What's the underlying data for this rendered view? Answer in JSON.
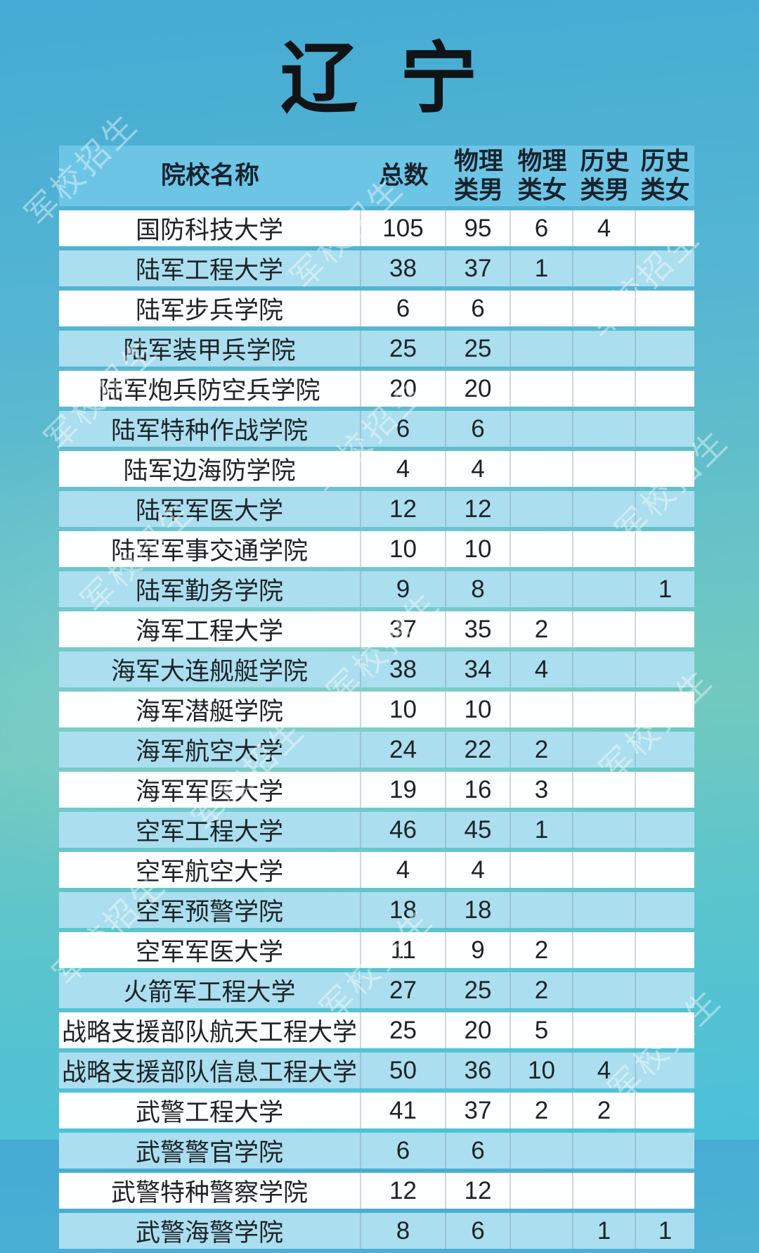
{
  "title": "辽 宁",
  "watermark": {
    "text": "军校招生"
  },
  "colors": {
    "background_top": "#45abd4",
    "background_middle": "#72c9c0",
    "background_bottom": "#4cc0da",
    "header_blue": "#6dc5e6",
    "row_light_blue": "#abdeee",
    "row_white": "#fdfeff",
    "text": "#1d2329"
  },
  "table": {
    "headers": [
      "院校名称",
      "总数",
      "物理\n类男",
      "物理\n类女",
      "历史\n类男",
      "历史\n类女"
    ],
    "rows": [
      {
        "name": "国防科技大学",
        "values": [
          "105",
          "95",
          "6",
          "4",
          ""
        ]
      },
      {
        "name": "陆军工程大学",
        "values": [
          "38",
          "37",
          "1",
          "",
          ""
        ]
      },
      {
        "name": "陆军步兵学院",
        "values": [
          "6",
          "6",
          "",
          "",
          ""
        ]
      },
      {
        "name": "陆军装甲兵学院",
        "values": [
          "25",
          "25",
          "",
          "",
          ""
        ]
      },
      {
        "name": "陆军炮兵防空兵学院",
        "values": [
          "20",
          "20",
          "",
          "",
          ""
        ]
      },
      {
        "name": "陆军特种作战学院",
        "values": [
          "6",
          "6",
          "",
          "",
          ""
        ]
      },
      {
        "name": "陆军边海防学院",
        "values": [
          "4",
          "4",
          "",
          "",
          ""
        ]
      },
      {
        "name": "陆军军医大学",
        "values": [
          "12",
          "12",
          "",
          "",
          ""
        ]
      },
      {
        "name": "陆军军事交通学院",
        "values": [
          "10",
          "10",
          "",
          "",
          ""
        ]
      },
      {
        "name": "陆军勤务学院",
        "values": [
          "9",
          "8",
          "",
          "",
          "1"
        ]
      },
      {
        "name": "海军工程大学",
        "values": [
          "37",
          "35",
          "2",
          "",
          ""
        ]
      },
      {
        "name": "海军大连舰艇学院",
        "values": [
          "38",
          "34",
          "4",
          "",
          ""
        ]
      },
      {
        "name": "海军潜艇学院",
        "values": [
          "10",
          "10",
          "",
          "",
          ""
        ]
      },
      {
        "name": "海军航空大学",
        "values": [
          "24",
          "22",
          "2",
          "",
          ""
        ]
      },
      {
        "name": "海军军医大学",
        "values": [
          "19",
          "16",
          "3",
          "",
          ""
        ]
      },
      {
        "name": "空军工程大学",
        "values": [
          "46",
          "45",
          "1",
          "",
          ""
        ]
      },
      {
        "name": "空军航空大学",
        "values": [
          "4",
          "4",
          "",
          "",
          ""
        ]
      },
      {
        "name": "空军预警学院",
        "values": [
          "18",
          "18",
          "",
          "",
          ""
        ]
      },
      {
        "name": "空军军医大学",
        "values": [
          "11",
          "9",
          "2",
          "",
          ""
        ]
      },
      {
        "name": "火箭军工程大学",
        "values": [
          "27",
          "25",
          "2",
          "",
          ""
        ]
      },
      {
        "name": "战略支援部队航天工程大学",
        "values": [
          "25",
          "20",
          "5",
          "",
          ""
        ]
      },
      {
        "name": "战略支援部队信息工程大学",
        "values": [
          "50",
          "36",
          "10",
          "4",
          ""
        ]
      },
      {
        "name": "武警工程大学",
        "values": [
          "41",
          "37",
          "2",
          "2",
          ""
        ]
      },
      {
        "name": "武警警官学院",
        "values": [
          "6",
          "6",
          "",
          "",
          ""
        ]
      },
      {
        "name": "武警特种警察学院",
        "values": [
          "12",
          "12",
          "",
          "",
          ""
        ]
      },
      {
        "name": "武警海警学院",
        "values": [
          "8",
          "6",
          "",
          "1",
          "1"
        ]
      }
    ]
  }
}
